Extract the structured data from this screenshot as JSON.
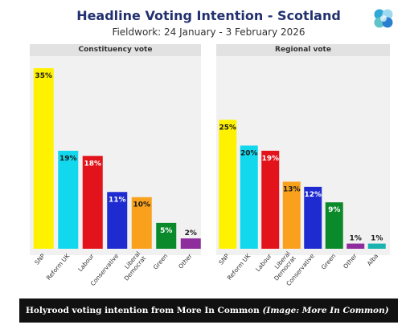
{
  "header": {
    "title": "Headline Voting Intention - Scotland",
    "subtitle": "Fieldwork: 24 January - 3 February 2026",
    "logo_icon": "more-in-common-logo-icon"
  },
  "caption": {
    "text": "Holyrood voting intention from More In Common",
    "credit": "(Image: More In Common)"
  },
  "chart_data": [
    {
      "type": "bar",
      "title": "Constituency vote",
      "categories": [
        "SNP",
        "Reform UK",
        "Labour",
        "Conservative",
        "Liberal Democrat",
        "Green",
        "Other"
      ],
      "tick_labels": [
        [
          "SNP"
        ],
        [
          "Reform UK"
        ],
        [
          "Labour"
        ],
        [
          "Conservative"
        ],
        [
          "Liberal",
          "Democrat"
        ],
        [
          "Green"
        ],
        [
          "Other"
        ]
      ],
      "values": [
        35,
        19,
        18,
        11,
        10,
        5,
        2
      ],
      "data_labels": [
        "35%",
        "19%",
        "18%",
        "11%",
        "10%",
        "5%",
        "2%"
      ],
      "colors": [
        "#fff200",
        "#12d8ee",
        "#e3131b",
        "#1d2bd0",
        "#f9a11c",
        "#0b8a2c",
        "#8e2d9c"
      ],
      "ylim": [
        0,
        35
      ],
      "grid": false,
      "legend": "none"
    },
    {
      "type": "bar",
      "title": "Regional vote",
      "categories": [
        "SNP",
        "Reform UK",
        "Labour",
        "Liberal Democrat",
        "Conservative",
        "Green",
        "Other",
        "Alba"
      ],
      "tick_labels": [
        [
          "SNP"
        ],
        [
          "Reform UK"
        ],
        [
          "Labour"
        ],
        [
          "Liberal",
          "Democrat"
        ],
        [
          "Conservative"
        ],
        [
          "Green"
        ],
        [
          "Other"
        ],
        [
          "Alba"
        ]
      ],
      "values": [
        25,
        20,
        19,
        13,
        12,
        9,
        1,
        1
      ],
      "data_labels": [
        "25%",
        "20%",
        "19%",
        "13%",
        "12%",
        "9%",
        "1%",
        "1%"
      ],
      "colors": [
        "#fff200",
        "#12d8ee",
        "#e3131b",
        "#f9a11c",
        "#1d2bd0",
        "#0b8a2c",
        "#8e2d9c",
        "#1ab3b0"
      ],
      "ylim": [
        0,
        35
      ],
      "grid": false,
      "legend": "none"
    }
  ]
}
